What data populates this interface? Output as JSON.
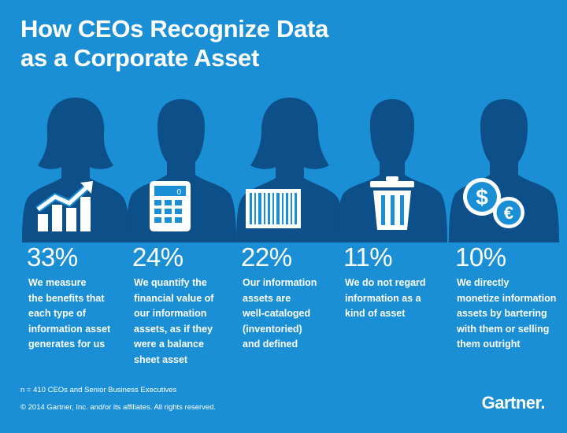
{
  "header": {
    "title_line1": "How CEOs Recognize Data",
    "title_line2": "as a Corporate Asset"
  },
  "stats": [
    {
      "percent": "33%",
      "desc_lines": [
        "We measure",
        "the benefits that",
        "each type of",
        "information asset",
        "generates for us"
      ],
      "icon": "growth-chart-icon"
    },
    {
      "percent": "24%",
      "desc_lines": [
        "We quantify the",
        "financial value of",
        "our information",
        "assets, as if they",
        "were a balance",
        "sheet asset"
      ],
      "icon": "calculator-icon"
    },
    {
      "percent": "22%",
      "desc_lines": [
        "Our information",
        "assets are",
        "well-cataloged",
        "(inventoried)",
        "and defined"
      ],
      "icon": "barcode-icon"
    },
    {
      "percent": "11%",
      "desc_lines": [
        "We do not regard",
        "information as a",
        "kind of asset"
      ],
      "icon": "trash-can-icon"
    },
    {
      "percent": "10%",
      "desc_lines": [
        "We directly",
        "monetize information",
        "assets by bartering",
        "with them or selling",
        "them outright"
      ],
      "icon": "currency-coins-icon"
    }
  ],
  "footer": {
    "sample_note": "n = 410 CEOs and Senior Business Executives",
    "copyright": "© 2014 Gartner, Inc. and/or its affiliates. All rights reserved.",
    "logo_text": "Gartner."
  },
  "colors": {
    "background": "#1a8fd6",
    "silhouette": "#0d4f88",
    "text": "#ffffff"
  }
}
